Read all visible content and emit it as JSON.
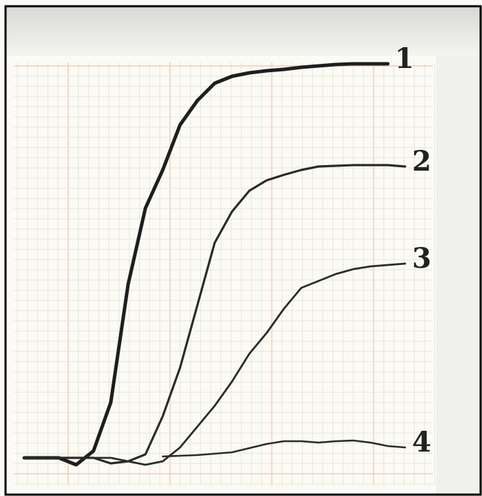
{
  "chart_data": {
    "type": "line",
    "x": [
      0,
      25,
      50,
      75,
      100,
      125,
      150,
      175,
      200,
      225,
      250,
      275,
      300,
      325,
      350,
      375,
      400,
      425,
      450,
      475,
      500,
      525,
      550
    ],
    "xlim": [
      0,
      550
    ],
    "ylim": [
      -30,
      570
    ],
    "series": [
      {
        "name": "1",
        "color": "#1e1e1e",
        "line_width": 5,
        "values": [
          0,
          0,
          0,
          -10,
          10,
          80,
          250,
          360,
          415,
          480,
          515,
          540,
          550,
          555,
          558,
          560,
          563,
          565,
          567,
          568,
          568,
          568,
          null
        ]
      },
      {
        "name": "2",
        "color": "#2a2a2a",
        "line_width": 3.2,
        "values": [
          0,
          0,
          0,
          0,
          0,
          -8,
          -5,
          5,
          60,
          130,
          220,
          310,
          355,
          385,
          400,
          408,
          415,
          420,
          421,
          422,
          422,
          422,
          420
        ]
      },
      {
        "name": "3",
        "color": "#2a2a2a",
        "line_width": 2.8,
        "values": [
          0,
          0,
          0,
          0,
          0,
          0,
          -5,
          -10,
          -5,
          15,
          45,
          75,
          110,
          150,
          180,
          215,
          245,
          255,
          265,
          272,
          276,
          278,
          280
        ]
      },
      {
        "name": "4",
        "color": "#2a2a2a",
        "line_width": 2.6,
        "values": [
          null,
          null,
          null,
          null,
          null,
          null,
          null,
          null,
          2,
          3,
          4,
          6,
          8,
          14,
          20,
          24,
          24,
          22,
          24,
          25,
          22,
          17,
          15
        ]
      }
    ]
  }
}
